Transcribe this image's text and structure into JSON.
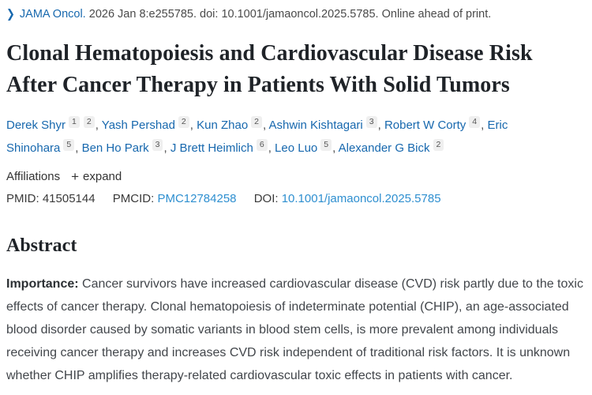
{
  "journal_line": {
    "journal": "JAMA Oncol.",
    "citation": "2026 Jan 8:e255785. doi: 10.1001/jamaoncol.2025.5785. Online ahead of print."
  },
  "title": "Clonal Hematopoiesis and Cardiovascular Disease Risk After Cancer Therapy in Patients With Solid Tumors",
  "authors": {
    "separator": ", ",
    "list": [
      {
        "name": "Derek Shyr",
        "sups": [
          "1",
          "2"
        ]
      },
      {
        "name": "Yash Pershad",
        "sups": [
          "2"
        ]
      },
      {
        "name": "Kun Zhao",
        "sups": [
          "2"
        ]
      },
      {
        "name": "Ashwin Kishtagari",
        "sups": [
          "3"
        ]
      },
      {
        "name": "Robert W Corty",
        "sups": [
          "4"
        ]
      },
      {
        "name": "Eric Shinohara",
        "sups": [
          "5"
        ]
      },
      {
        "name": "Ben Ho Park",
        "sups": [
          "3"
        ]
      },
      {
        "name": "J Brett Heimlich",
        "sups": [
          "6"
        ]
      },
      {
        "name": "Leo Luo",
        "sups": [
          "5"
        ]
      },
      {
        "name": "Alexander G Bick",
        "sups": [
          "2"
        ]
      }
    ]
  },
  "affiliations": {
    "label": "Affiliations",
    "plus_icon": "+",
    "expand_label": "expand"
  },
  "identifiers": {
    "pmid_label": "PMID:",
    "pmid": "41505144",
    "pmcid_label": "PMCID:",
    "pmcid": "PMC12784258",
    "doi_label": "DOI:",
    "doi": "10.1001/jamaoncol.2025.5785"
  },
  "abstract": {
    "heading": "Abstract",
    "importance_label": "Importance:",
    "importance_text": " Cancer survivors have increased cardiovascular disease (CVD) risk partly due to the toxic effects of cancer therapy. Clonal hematopoiesis of indeterminate potential (CHIP), an age-associated blood disorder caused by somatic variants in blood stem cells, is more prevalent among individuals receiving cancer therapy and increases CVD risk independent of traditional risk factors. It is unknown whether CHIP amplifies therapy-related cardiovascular toxic effects in patients with cancer."
  },
  "colors": {
    "link_blue": "#1768ae",
    "id_link_blue": "#2e8fd0",
    "heading_dark": "#1f2328",
    "body_text": "#42464b",
    "badge_bg": "#efefef"
  }
}
